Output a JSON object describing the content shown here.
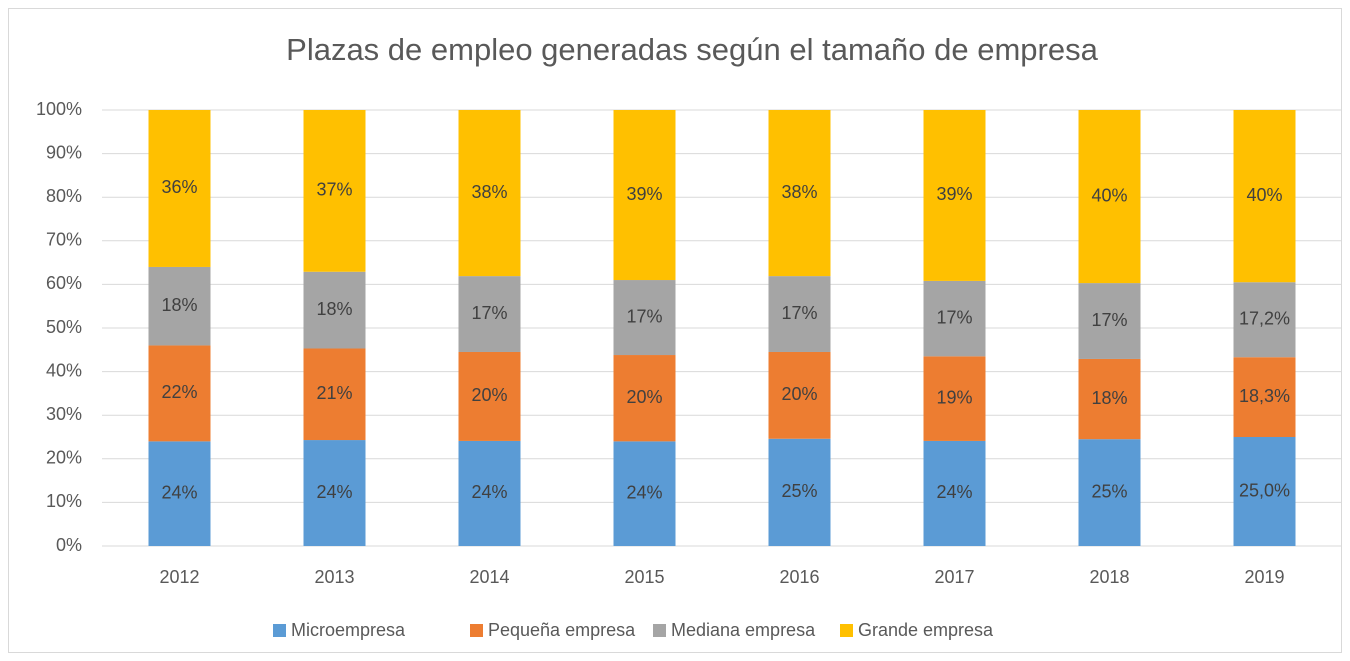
{
  "chart_data": {
    "type": "stacked_bar",
    "title": "Plazas de empleo generadas según el tamaño de empresa",
    "categories": [
      "2012",
      "2013",
      "2014",
      "2015",
      "2016",
      "2017",
      "2018",
      "2019"
    ],
    "series": [
      {
        "name": "Microempresa",
        "color": "#5b9bd5",
        "values": [
          24,
          24.3,
          24.1,
          24,
          24.6,
          24.1,
          24.5,
          25.0
        ],
        "value_labels": [
          "24%",
          "24%",
          "24%",
          "24%",
          "25%",
          "24%",
          "25%",
          "25,0%"
        ]
      },
      {
        "name": "Pequeña empresa",
        "color": "#ed7d31",
        "values": [
          22,
          21,
          20.4,
          19.8,
          19.9,
          19.4,
          18.4,
          18.3
        ],
        "value_labels": [
          "22%",
          "21%",
          "20%",
          "20%",
          "20%",
          "19%",
          "18%",
          "18,3%"
        ]
      },
      {
        "name": "Mediana empresa",
        "color": "#a5a5a5",
        "values": [
          18,
          17.6,
          17.4,
          17.2,
          17.4,
          17.3,
          17.4,
          17.2
        ],
        "value_labels": [
          "18%",
          "18%",
          "17%",
          "17%",
          "17%",
          "17%",
          "17%",
          "17,2%"
        ]
      },
      {
        "name": "Grande empresa",
        "color": "#ffc000",
        "values": [
          36,
          37.1,
          38.1,
          39,
          38.1,
          39.2,
          39.7,
          39.5
        ],
        "value_labels": [
          "36%",
          "37%",
          "38%",
          "39%",
          "38%",
          "39%",
          "40%",
          "40%"
        ]
      }
    ],
    "ylim": [
      0,
      100
    ],
    "yticks": [
      {
        "value": 0,
        "label": "0%"
      },
      {
        "value": 10,
        "label": "10%"
      },
      {
        "value": 20,
        "label": "20%"
      },
      {
        "value": 30,
        "label": "30%"
      },
      {
        "value": 40,
        "label": "40%"
      },
      {
        "value": 50,
        "label": "50%"
      },
      {
        "value": 60,
        "label": "60%"
      },
      {
        "value": 70,
        "label": "70%"
      },
      {
        "value": 80,
        "label": "80%"
      },
      {
        "value": 90,
        "label": "90%"
      },
      {
        "value": 100,
        "label": "100%"
      }
    ],
    "grid": true,
    "legend": "bottom"
  }
}
